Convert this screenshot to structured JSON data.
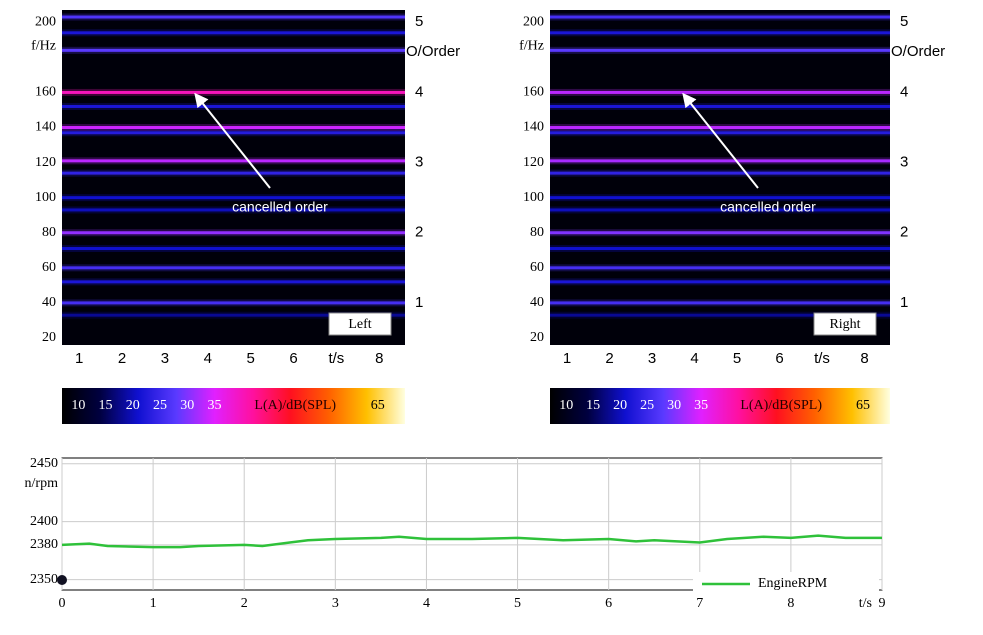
{
  "chart_data": [
    {
      "type": "heatmap",
      "label": "Left",
      "ylabel": "f/Hz",
      "y2label": "O/Order",
      "annotation": "cancelled order",
      "xlim": [
        0.6,
        8.6
      ],
      "xticks": [
        1,
        2,
        3,
        4,
        5,
        6,
        {
          "value": 7,
          "label": "t/s"
        },
        8
      ],
      "ylim": [
        16,
        207
      ],
      "yticks": [
        20,
        40,
        60,
        80,
        100,
        120,
        140,
        160,
        200
      ],
      "y2lim": [
        0.4,
        5.175
      ],
      "y2ticks": [
        1,
        2,
        3,
        4,
        5
      ],
      "frequencies": [
        203,
        194,
        184,
        160,
        152,
        140,
        137,
        121,
        114,
        100,
        93,
        80,
        71,
        60,
        52,
        40,
        33
      ],
      "levels": [
        27,
        22,
        28,
        40,
        22,
        34,
        23,
        33,
        24,
        21,
        20,
        31,
        21,
        26,
        22,
        26,
        18
      ],
      "colorbar": {
        "lim": [
          7,
          70
        ],
        "ticks": [
          10,
          15,
          20,
          25,
          30,
          35,
          65
        ],
        "label": "L(A)/dB(SPL)",
        "colors": [
          "#000000",
          "#000040",
          "#1010d0",
          "#5a3aff",
          "#e020ff",
          "#ff10a0",
          "#ff1020",
          "#ff6000",
          "#ffc000",
          "#ffffe0"
        ]
      }
    },
    {
      "type": "heatmap",
      "label": "Right",
      "ylabel": "f/Hz",
      "y2label": "O/Order",
      "annotation": "cancelled order",
      "xlim": [
        0.6,
        8.6
      ],
      "xticks": [
        1,
        2,
        3,
        4,
        5,
        6,
        {
          "value": 7,
          "label": "t/s"
        },
        8
      ],
      "ylim": [
        16,
        207
      ],
      "yticks": [
        20,
        40,
        60,
        80,
        100,
        120,
        140,
        160,
        200
      ],
      "y2lim": [
        0.4,
        5.175
      ],
      "y2ticks": [
        1,
        2,
        3,
        4,
        5
      ],
      "frequencies": [
        203,
        194,
        184,
        160,
        152,
        140,
        137,
        121,
        114,
        100,
        93,
        80,
        71,
        60,
        52,
        40,
        33
      ],
      "levels": [
        26,
        22,
        28,
        33,
        22,
        33,
        23,
        32,
        24,
        21,
        20,
        30,
        21,
        26,
        22,
        26,
        18
      ],
      "colorbar": {
        "lim": [
          7,
          70
        ],
        "ticks": [
          10,
          15,
          20,
          25,
          30,
          35,
          65
        ],
        "label": "L(A)/dB(SPL)",
        "colors": [
          "#000000",
          "#000040",
          "#1010d0",
          "#5a3aff",
          "#e020ff",
          "#ff10a0",
          "#ff1020",
          "#ff6000",
          "#ffc000",
          "#ffffe0"
        ]
      }
    },
    {
      "type": "line",
      "ylabel": "n/rpm",
      "xlabel": "t/s",
      "x": [
        0,
        0.3,
        0.5,
        1,
        1.3,
        1.5,
        2,
        2.2,
        2.5,
        2.7,
        3,
        3.5,
        3.7,
        4,
        4.5,
        5,
        5.5,
        6,
        6.3,
        6.5,
        7,
        7.3,
        7.7,
        8,
        8.3,
        8.6,
        9
      ],
      "series": [
        {
          "name": "EngineRPM",
          "color": "#2fc13a",
          "values": [
            2380,
            2381,
            2379,
            2378,
            2378,
            2379,
            2380,
            2379,
            2382,
            2384,
            2385,
            2386,
            2387,
            2385,
            2385,
            2386,
            2384,
            2385,
            2383,
            2384,
            2382,
            2385,
            2387,
            2386,
            2388,
            2386,
            2386
          ]
        }
      ],
      "xlim": [
        0,
        9
      ],
      "xticks": [
        0,
        1,
        2,
        3,
        4,
        5,
        6,
        7,
        8,
        9
      ],
      "ylim": [
        2341,
        2455
      ],
      "yticks": [
        2350,
        2380,
        2400,
        2450
      ],
      "grid": true
    }
  ]
}
